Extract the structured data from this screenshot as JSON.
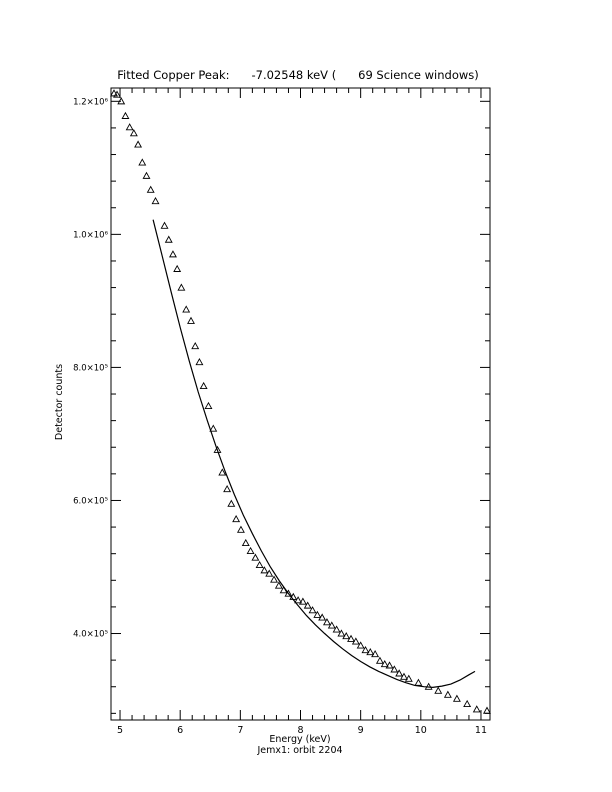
{
  "chart_data": {
    "type": "scatter",
    "title": "Fitted Copper Peak:      -7.02548 keV (      69 Science windows)",
    "xlabel": "Energy (keV)",
    "subtitle": "Jemx1: orbit 2204",
    "ylabel": "Detector counts",
    "xlim": [
      4.85,
      11.15
    ],
    "ylim": [
      270000,
      1220000
    ],
    "x_ticks": [
      {
        "value": 5,
        "label": "5"
      },
      {
        "value": 6,
        "label": "6"
      },
      {
        "value": 7,
        "label": "7"
      },
      {
        "value": 8,
        "label": "8"
      },
      {
        "value": 9,
        "label": "9"
      },
      {
        "value": 10,
        "label": "10"
      },
      {
        "value": 11,
        "label": "11"
      }
    ],
    "y_ticks": [
      {
        "value": 400000,
        "label": "4.0×10⁵"
      },
      {
        "value": 600000,
        "label": "6.0×10⁵"
      },
      {
        "value": 800000,
        "label": "8.0×10⁵"
      },
      {
        "value": 1000000,
        "label": "1.0×10⁶"
      },
      {
        "value": 1200000,
        "label": "1.2×10⁶"
      }
    ],
    "series": [
      {
        "marker": "triangle",
        "points": [
          [
            4.9,
            1212000
          ],
          [
            4.95,
            1210000
          ],
          [
            5.02,
            1200000
          ],
          [
            5.09,
            1178000
          ],
          [
            5.16,
            1161000
          ],
          [
            5.23,
            1152000
          ],
          [
            5.3,
            1135000
          ],
          [
            5.37,
            1108000
          ],
          [
            5.44,
            1088000
          ],
          [
            5.51,
            1067000
          ],
          [
            5.59,
            1050000
          ],
          [
            5.74,
            1013000
          ],
          [
            5.81,
            992000
          ],
          [
            5.88,
            970000
          ],
          [
            5.95,
            948000
          ],
          [
            6.02,
            920000
          ],
          [
            6.1,
            887000
          ],
          [
            6.18,
            870000
          ],
          [
            6.25,
            832000
          ],
          [
            6.32,
            808000
          ],
          [
            6.39,
            772000
          ],
          [
            6.47,
            742000
          ],
          [
            6.55,
            708000
          ],
          [
            6.62,
            676000
          ],
          [
            6.7,
            642000
          ],
          [
            6.78,
            617000
          ],
          [
            6.85,
            595000
          ],
          [
            6.93,
            572000
          ],
          [
            7.01,
            556000
          ],
          [
            7.09,
            536000
          ],
          [
            7.17,
            524000
          ],
          [
            7.25,
            514000
          ],
          [
            7.32,
            503000
          ],
          [
            7.4,
            495000
          ],
          [
            7.48,
            490000
          ],
          [
            7.56,
            481000
          ],
          [
            7.64,
            472000
          ],
          [
            7.72,
            465000
          ],
          [
            7.8,
            460000
          ],
          [
            7.88,
            455000
          ],
          [
            7.96,
            450000
          ],
          [
            8.04,
            448000
          ],
          [
            8.12,
            442000
          ],
          [
            8.2,
            435000
          ],
          [
            8.28,
            428000
          ],
          [
            8.36,
            424000
          ],
          [
            8.44,
            417000
          ],
          [
            8.52,
            412000
          ],
          [
            8.6,
            406000
          ],
          [
            8.68,
            400000
          ],
          [
            8.76,
            396000
          ],
          [
            8.84,
            392000
          ],
          [
            8.92,
            388000
          ],
          [
            9.0,
            382000
          ],
          [
            9.08,
            375000
          ],
          [
            9.16,
            372000
          ],
          [
            9.24,
            369000
          ],
          [
            9.32,
            359000
          ],
          [
            9.4,
            354000
          ],
          [
            9.48,
            352000
          ],
          [
            9.56,
            346000
          ],
          [
            9.64,
            340000
          ],
          [
            9.72,
            335000
          ],
          [
            9.8,
            332000
          ],
          [
            9.96,
            326000
          ],
          [
            10.13,
            320000
          ],
          [
            10.29,
            314000
          ],
          [
            10.45,
            308000
          ],
          [
            10.6,
            302000
          ],
          [
            10.77,
            294000
          ],
          [
            10.93,
            286000
          ],
          [
            11.1,
            284000
          ]
        ]
      },
      {
        "type": "line",
        "points": [
          [
            5.55,
            1022000
          ],
          [
            5.7,
            968000
          ],
          [
            5.85,
            913000
          ],
          [
            6.0,
            860000
          ],
          [
            6.15,
            810000
          ],
          [
            6.3,
            763000
          ],
          [
            6.45,
            720000
          ],
          [
            6.6,
            680000
          ],
          [
            6.75,
            643000
          ],
          [
            6.9,
            609000
          ],
          [
            7.05,
            578000
          ],
          [
            7.2,
            550000
          ],
          [
            7.35,
            524000
          ],
          [
            7.5,
            500000
          ],
          [
            7.65,
            479000
          ],
          [
            7.8,
            460000
          ],
          [
            7.95,
            443000
          ],
          [
            8.1,
            427000
          ],
          [
            8.25,
            413000
          ],
          [
            8.4,
            400000
          ],
          [
            8.55,
            388000
          ],
          [
            8.7,
            377000
          ],
          [
            8.85,
            367000
          ],
          [
            9.0,
            358000
          ],
          [
            9.15,
            350000
          ],
          [
            9.3,
            343000
          ],
          [
            9.45,
            337000
          ],
          [
            9.6,
            331000
          ],
          [
            9.75,
            326000
          ],
          [
            9.9,
            322000
          ],
          [
            10.05,
            320000
          ],
          [
            10.2,
            319000
          ],
          [
            10.35,
            321000
          ],
          [
            10.5,
            324000
          ],
          [
            10.65,
            330000
          ],
          [
            10.8,
            338000
          ],
          [
            10.9,
            343000
          ]
        ]
      }
    ]
  }
}
